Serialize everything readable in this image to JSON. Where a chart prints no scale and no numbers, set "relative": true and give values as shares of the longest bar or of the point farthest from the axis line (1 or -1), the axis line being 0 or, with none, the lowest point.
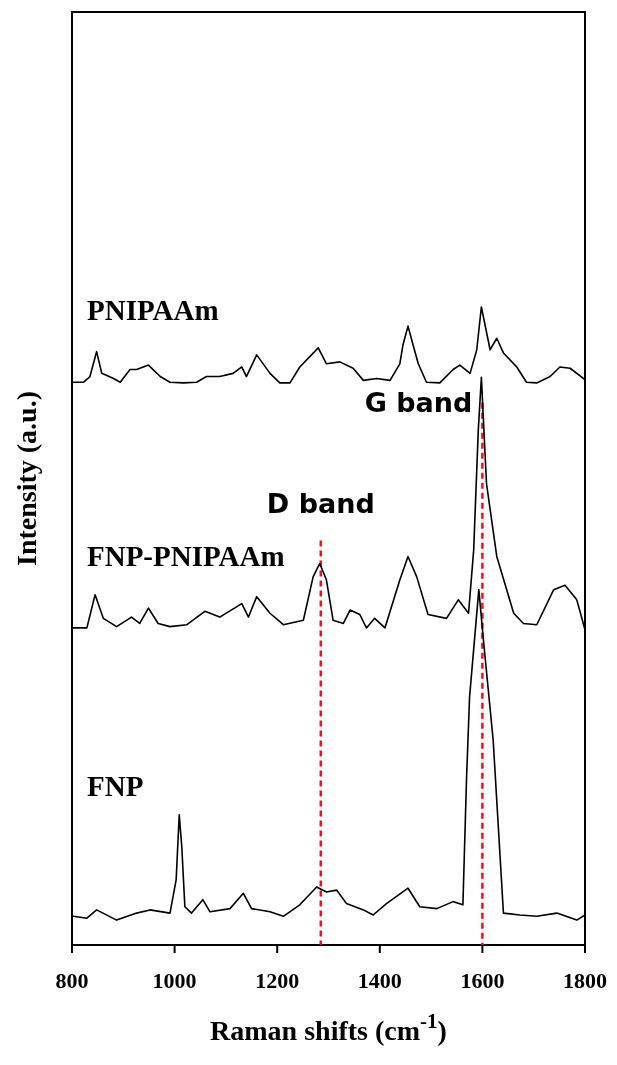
{
  "chart_data": {
    "type": "line",
    "relative": true,
    "xlabel": "Raman shifts (cm$^{-1}$)",
    "ylabel": "Intensity (a.u.)",
    "xlim": [
      800,
      1800
    ],
    "xticks": [
      800,
      1000,
      1200,
      1400,
      1600,
      1800
    ],
    "grid": false,
    "legend": false,
    "marker": "none",
    "line_style": "solid",
    "series": [
      {
        "name": "PNIPAAm",
        "color": "#000000",
        "x": [
          803,
          822,
          835,
          848,
          858,
          881,
          894,
          913,
          926,
          949,
          972,
          991,
          1017,
          1043,
          1062,
          1088,
          1114,
          1131,
          1140,
          1160,
          1186,
          1205,
          1225,
          1244,
          1280,
          1296,
          1322,
          1348,
          1368,
          1394,
          1420,
          1439,
          1445,
          1455,
          1465,
          1475,
          1491,
          1517,
          1543,
          1556,
          1576,
          1589,
          1598,
          1615,
          1628,
          1641,
          1667,
          1686,
          1706,
          1732,
          1751,
          1771,
          1800
        ],
        "values": [
          0.882,
          0.882,
          0.891,
          0.93,
          0.896,
          0.888,
          0.882,
          0.902,
          0.902,
          0.909,
          0.891,
          0.882,
          0.881,
          0.882,
          0.891,
          0.891,
          0.896,
          0.906,
          0.891,
          0.925,
          0.896,
          0.881,
          0.881,
          0.906,
          0.936,
          0.911,
          0.914,
          0.904,
          0.885,
          0.888,
          0.885,
          0.911,
          0.94,
          0.97,
          0.94,
          0.911,
          0.882,
          0.881,
          0.902,
          0.909,
          0.896,
          0.933,
          1.0,
          0.933,
          0.951,
          0.928,
          0.906,
          0.882,
          0.881,
          0.891,
          0.906,
          0.904,
          0.886
        ]
      },
      {
        "name": "FNP-PNIPAAm",
        "color": "#000000",
        "x": [
          803,
          829,
          845,
          861,
          887,
          916,
          932,
          949,
          968,
          991,
          1024,
          1059,
          1088,
          1131,
          1144,
          1160,
          1186,
          1212,
          1251,
          1270,
          1283,
          1296,
          1309,
          1329,
          1342,
          1361,
          1374,
          1390,
          1410,
          1439,
          1455,
          1472,
          1494,
          1530,
          1553,
          1573,
          1583,
          1592,
          1598,
          1608,
          1628,
          1661,
          1680,
          1706,
          1739,
          1761,
          1784,
          1800
        ],
        "values": [
          0.497,
          0.497,
          0.549,
          0.512,
          0.499,
          0.514,
          0.504,
          0.528,
          0.504,
          0.499,
          0.502,
          0.523,
          0.514,
          0.535,
          0.514,
          0.546,
          0.52,
          0.502,
          0.509,
          0.577,
          0.598,
          0.572,
          0.509,
          0.504,
          0.525,
          0.518,
          0.497,
          0.512,
          0.497,
          0.572,
          0.609,
          0.577,
          0.518,
          0.512,
          0.541,
          0.52,
          0.619,
          0.807,
          0.89,
          0.723,
          0.609,
          0.52,
          0.504,
          0.502,
          0.557,
          0.564,
          0.541,
          0.494
        ]
      },
      {
        "name": "FNP",
        "color": "#000000",
        "x": [
          803,
          829,
          848,
          887,
          926,
          952,
          991,
          1003,
          1009,
          1014,
          1020,
          1033,
          1055,
          1069,
          1108,
          1134,
          1150,
          1186,
          1212,
          1244,
          1277,
          1296,
          1316,
          1335,
          1368,
          1387,
          1413,
          1455,
          1478,
          1511,
          1543,
          1562,
          1569,
          1575,
          1593,
          1602,
          1621,
          1641,
          1673,
          1706,
          1745,
          1784,
          1800
        ],
        "values": [
          0.045,
          0.042,
          0.055,
          0.039,
          0.05,
          0.055,
          0.05,
          0.102,
          0.204,
          0.154,
          0.06,
          0.05,
          0.071,
          0.052,
          0.057,
          0.081,
          0.057,
          0.052,
          0.045,
          0.063,
          0.091,
          0.083,
          0.086,
          0.065,
          0.055,
          0.047,
          0.065,
          0.089,
          0.06,
          0.057,
          0.068,
          0.063,
          0.259,
          0.389,
          0.557,
          0.478,
          0.321,
          0.05,
          0.047,
          0.045,
          0.05,
          0.039,
          0.047
        ]
      }
    ],
    "ref_lines": [
      {
        "axis": "x",
        "value": 1285,
        "label": "D band",
        "color": "#e8141c",
        "line_style": "dashed"
      },
      {
        "axis": "x",
        "value": 1600,
        "label": "G band",
        "color": "#e8141c",
        "line_style": "dashed"
      }
    ]
  }
}
